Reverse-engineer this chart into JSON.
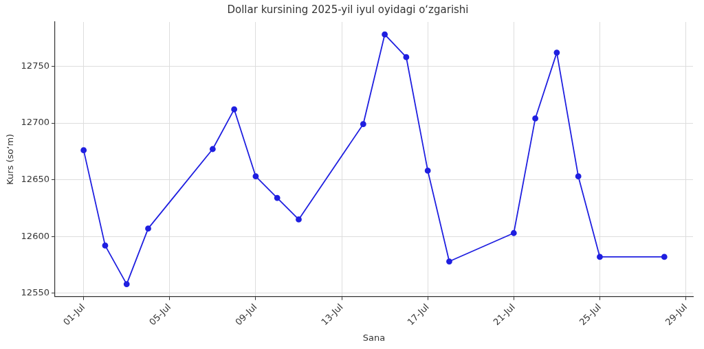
{
  "chart_data": {
    "type": "line",
    "title": "Dollar kursining 2025-yil iyul oyidagi oʻzgarishi",
    "xlabel": "Sana",
    "ylabel": "Kurs (soʻm)",
    "x": [
      "2025-07-01",
      "2025-07-02",
      "2025-07-03",
      "2025-07-04",
      "2025-07-07",
      "2025-07-08",
      "2025-07-09",
      "2025-07-10",
      "2025-07-11",
      "2025-07-14",
      "2025-07-15",
      "2025-07-16",
      "2025-07-17",
      "2025-07-18",
      "2025-07-21",
      "2025-07-22",
      "2025-07-23",
      "2025-07-24",
      "2025-07-25",
      "2025-07-28"
    ],
    "series": [
      {
        "color": "#1f1fe0",
        "values": [
          12676,
          12592,
          12558,
          12607,
          12677,
          12712,
          12653,
          12634,
          12615,
          12699,
          12778,
          12758,
          12658,
          12578,
          12603,
          12704,
          12762,
          12653,
          12582,
          12582
        ]
      }
    ],
    "xlim": [
      "2025-06-29T16:00",
      "2025-07-29T08:00"
    ],
    "xticks": [
      {
        "value": "2025-07-01",
        "label": "01-Jul"
      },
      {
        "value": "2025-07-05",
        "label": "05-Jul"
      },
      {
        "value": "2025-07-09",
        "label": "09-Jul"
      },
      {
        "value": "2025-07-13",
        "label": "13-Jul"
      },
      {
        "value": "2025-07-17",
        "label": "17-Jul"
      },
      {
        "value": "2025-07-21",
        "label": "21-Jul"
      },
      {
        "value": "2025-07-25",
        "label": "25-Jul"
      },
      {
        "value": "2025-07-29",
        "label": "29-Jul"
      }
    ],
    "ylim": [
      12547,
      12789
    ],
    "yticks": [
      12550,
      12600,
      12650,
      12700,
      12750
    ],
    "grid": true,
    "legend": false,
    "marker": "circle",
    "line_style": "solid"
  }
}
